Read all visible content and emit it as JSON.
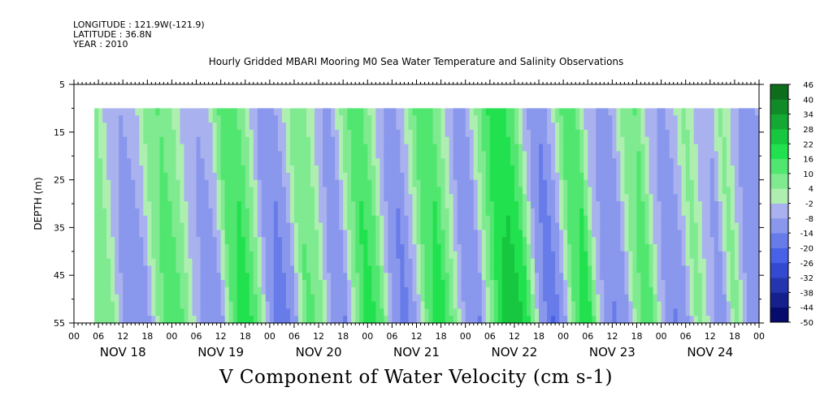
{
  "header": {
    "longitude": "LONGITUDE : 121.9W(-121.9)",
    "latitude": "LATITUDE : 36.8N",
    "year": "YEAR : 2010"
  },
  "colors": {
    "negative_dark": "#00005a",
    "negative_mid": "#3d58e6",
    "negative_light": "#c4c8f0",
    "positive_light": "#b6f0b6",
    "positive_mid": "#19e048",
    "positive_dark": "#0a4a10"
  },
  "chart_data": {
    "type": "heatmap",
    "title": "Hourly Gridded MBARI Mooring M0 Sea Water Temperature and Salinity Observations",
    "xlabel": "V Component of Water Velocity (cm s-1)",
    "ylabel": "DEPTH (m)",
    "y_range": [
      5,
      55
    ],
    "y_inverted": true,
    "y_ticks": [
      5,
      15,
      25,
      35,
      45,
      55
    ],
    "data_depth_range": [
      10,
      55
    ],
    "x_range_hours": [
      0,
      168
    ],
    "data_start_hour": 5,
    "hour_tick_labels": [
      "00",
      "06",
      "12",
      "18",
      "00",
      "06",
      "12",
      "18",
      "00",
      "06",
      "12",
      "18",
      "00",
      "06",
      "12",
      "18",
      "00",
      "06",
      "12",
      "18",
      "00",
      "06",
      "12",
      "18",
      "00",
      "06",
      "12",
      "18",
      "00"
    ],
    "day_labels": [
      "NOV 18",
      "NOV 19",
      "NOV 20",
      "NOV 21",
      "NOV 22",
      "NOV 23",
      "NOV 24"
    ],
    "colorbar_levels": [
      -50,
      -44,
      -38,
      -32,
      -26,
      -20,
      -14,
      -8,
      -2,
      4,
      10,
      16,
      22,
      28,
      34,
      40,
      46
    ],
    "colorbar_tick_labels": [
      "46",
      "40",
      "34",
      "28",
      "22",
      "16",
      "10",
      "4",
      "-2",
      "-8",
      "-14",
      "-20",
      "-26",
      "-32",
      "-38",
      "-44",
      "-50"
    ],
    "surface_v_by_hour": [
      [
        5,
        4
      ],
      [
        8,
        -6
      ],
      [
        11,
        -8
      ],
      [
        14,
        -6
      ],
      [
        17,
        6
      ],
      [
        20,
        10
      ],
      [
        23,
        6
      ],
      [
        26,
        -4
      ],
      [
        29,
        -8
      ],
      [
        32,
        -6
      ],
      [
        35,
        10
      ],
      [
        38,
        14
      ],
      [
        41,
        6
      ],
      [
        44,
        -8
      ],
      [
        47,
        -12
      ],
      [
        50,
        -6
      ],
      [
        53,
        8
      ],
      [
        56,
        6
      ],
      [
        59,
        -6
      ],
      [
        62,
        -10
      ],
      [
        65,
        4
      ],
      [
        68,
        14
      ],
      [
        71,
        8
      ],
      [
        74,
        -6
      ],
      [
        77,
        -12
      ],
      [
        80,
        -4
      ],
      [
        83,
        10
      ],
      [
        86,
        14
      ],
      [
        89,
        4
      ],
      [
        92,
        -8
      ],
      [
        95,
        -10
      ],
      [
        98,
        4
      ],
      [
        101,
        16
      ],
      [
        104,
        18
      ],
      [
        107,
        12
      ],
      [
        110,
        -6
      ],
      [
        113,
        -14
      ],
      [
        116,
        -6
      ],
      [
        119,
        10
      ],
      [
        122,
        14
      ],
      [
        125,
        -4
      ],
      [
        128,
        -10
      ],
      [
        131,
        -8
      ],
      [
        134,
        6
      ],
      [
        137,
        10
      ],
      [
        140,
        -4
      ],
      [
        143,
        -10
      ],
      [
        146,
        -6
      ],
      [
        149,
        6
      ],
      [
        152,
        -4
      ],
      [
        155,
        -8
      ],
      [
        158,
        6
      ],
      [
        161,
        -6
      ],
      [
        164,
        -10
      ],
      [
        167,
        -8
      ]
    ]
  }
}
